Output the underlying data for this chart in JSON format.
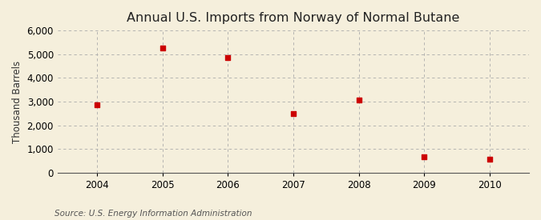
{
  "title": "Annual U.S. Imports from Norway of Normal Butane",
  "ylabel": "Thousand Barrels",
  "source": "Source: U.S. Energy Information Administration",
  "years": [
    2004,
    2005,
    2006,
    2007,
    2008,
    2009,
    2010
  ],
  "values": [
    2860,
    5270,
    4860,
    2510,
    3080,
    660,
    560
  ],
  "marker_color": "#cc0000",
  "marker_size": 4,
  "background_color": "#f5efdc",
  "grid_color": "#aaaaaa",
  "ylim": [
    0,
    6000
  ],
  "yticks": [
    0,
    1000,
    2000,
    3000,
    4000,
    5000,
    6000
  ],
  "xlim": [
    2003.4,
    2010.6
  ],
  "title_fontsize": 11.5,
  "label_fontsize": 8.5,
  "source_fontsize": 7.5
}
